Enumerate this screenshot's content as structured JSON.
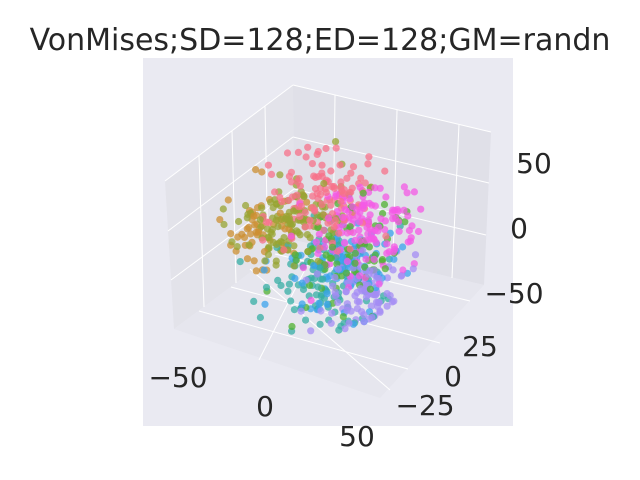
{
  "colors": {
    "background": "#ffffff",
    "axes_face": "#eaeaf2",
    "pane_back": "#e3e3ea",
    "pane_side": "#e0e0e8",
    "pane_floor": "#e6e6ee",
    "grid": "#ffffff",
    "text": "#262626"
  },
  "chart_data": {
    "type": "scatter",
    "projection": "3d",
    "title": "VonMises;SD=128;ED=128;GM=randn",
    "xlabel": "",
    "ylabel": "",
    "zlabel": "",
    "x_ticks": [
      "−50",
      "0",
      "50"
    ],
    "y_ticks": [
      "−25",
      "0",
      "25"
    ],
    "z_ticks": [
      "−50",
      "0",
      "50"
    ],
    "xlim": [
      -70,
      70
    ],
    "ylim": [
      -40,
      40
    ],
    "zlim": [
      -60,
      60
    ],
    "grid": true,
    "legend": "none",
    "series": [
      {
        "color": "#f77189",
        "points_approx": 120,
        "center": [
          2,
          0,
          35
        ],
        "spread": 16
      },
      {
        "color": "#f45ae6",
        "points_approx": 120,
        "center": [
          30,
          5,
          18
        ],
        "spread": 15
      },
      {
        "color": "#a48cf4",
        "points_approx": 100,
        "center": [
          32,
          -5,
          -25
        ],
        "spread": 14
      },
      {
        "color": "#3ba3ec",
        "points_approx": 110,
        "center": [
          12,
          5,
          -20
        ],
        "spread": 14
      },
      {
        "color": "#36ada4",
        "points_approx": 100,
        "center": [
          5,
          0,
          -35
        ],
        "spread": 15
      },
      {
        "color": "#50b131",
        "points_approx": 80,
        "center": [
          20,
          0,
          -5
        ],
        "spread": 16
      },
      {
        "color": "#97a431",
        "points_approx": 120,
        "center": [
          -22,
          0,
          5
        ],
        "spread": 14
      },
      {
        "color": "#cc8f32",
        "points_approx": 60,
        "center": [
          -38,
          0,
          -8
        ],
        "spread": 12
      }
    ]
  }
}
